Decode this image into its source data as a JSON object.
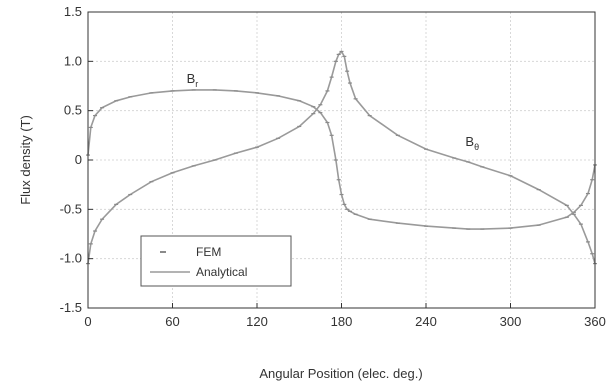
{
  "chart_data": {
    "type": "line",
    "xlabel": "Angular Position   (elec. deg.)",
    "ylabel": "Flux density (T)",
    "xlim": [
      0,
      360
    ],
    "ylim": [
      -1.5,
      1.5
    ],
    "xticks": [
      0,
      60,
      120,
      180,
      240,
      300,
      360
    ],
    "xtick_labels": [
      "0",
      "60",
      "120",
      "180",
      "240",
      "300",
      "360"
    ],
    "yticks": [
      -1.5,
      -1.0,
      -0.5,
      0,
      0.5,
      1.0,
      1.5
    ],
    "ytick_labels": [
      "-1.5",
      "-1.0",
      "-0.5",
      "0",
      "0.5",
      "1.0",
      "1.5"
    ],
    "grid": true,
    "legend": {
      "position": "bottom-left",
      "entries": [
        {
          "label": "FEM",
          "style": "markers"
        },
        {
          "label": "Analytical",
          "style": "line"
        }
      ]
    },
    "annotations": [
      {
        "text": "B",
        "subscript": "r",
        "x": 70,
        "y": 0.78
      },
      {
        "text": "B",
        "subscript": "θ",
        "x": 268,
        "y": 0.14
      }
    ],
    "colors": {
      "line": "#9a9a9a",
      "marker": "#8a8a8a",
      "grid": "#d8d8d8",
      "axis": "#333333"
    },
    "series": [
      {
        "name": "Br",
        "x": [
          0,
          2,
          5,
          10,
          20,
          30,
          45,
          60,
          75,
          90,
          105,
          120,
          135,
          150,
          160,
          165,
          170,
          173,
          176,
          178,
          180,
          182,
          184,
          186,
          190,
          200,
          220,
          240,
          260,
          270,
          280,
          300,
          320,
          340,
          345,
          350,
          355,
          358,
          360
        ],
        "y": [
          0.05,
          0.33,
          0.45,
          0.53,
          0.6,
          0.64,
          0.68,
          0.7,
          0.71,
          0.71,
          0.7,
          0.68,
          0.65,
          0.6,
          0.54,
          0.48,
          0.38,
          0.25,
          0.0,
          -0.2,
          -0.35,
          -0.45,
          -0.5,
          -0.52,
          -0.55,
          -0.6,
          -0.64,
          -0.67,
          -0.69,
          -0.7,
          -0.7,
          -0.69,
          -0.66,
          -0.58,
          -0.53,
          -0.46,
          -0.34,
          -0.2,
          -0.05
        ]
      },
      {
        "name": "Bθ",
        "x": [
          0,
          2,
          5,
          10,
          20,
          30,
          45,
          60,
          75,
          90,
          105,
          120,
          135,
          150,
          160,
          165,
          170,
          173,
          176,
          178,
          180,
          182,
          184,
          186,
          190,
          200,
          220,
          240,
          260,
          270,
          280,
          300,
          320,
          340,
          345,
          350,
          355,
          358,
          360
        ],
        "y": [
          -1.05,
          -0.85,
          -0.72,
          -0.6,
          -0.45,
          -0.35,
          -0.22,
          -0.13,
          -0.06,
          0.0,
          0.07,
          0.13,
          0.22,
          0.34,
          0.47,
          0.56,
          0.7,
          0.84,
          1.0,
          1.07,
          1.1,
          1.05,
          0.9,
          0.78,
          0.62,
          0.45,
          0.25,
          0.11,
          0.02,
          -0.02,
          -0.07,
          -0.16,
          -0.3,
          -0.46,
          -0.55,
          -0.65,
          -0.83,
          -0.95,
          -1.05
        ]
      }
    ]
  }
}
